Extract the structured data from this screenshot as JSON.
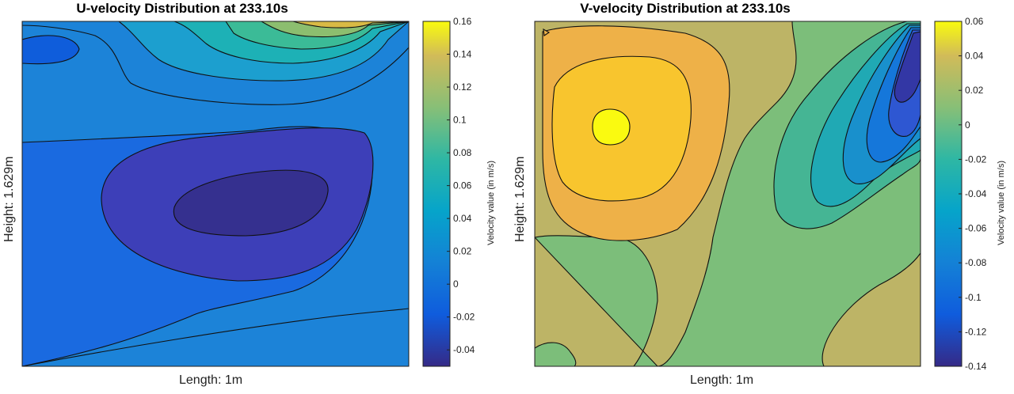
{
  "chart_data": [
    {
      "type": "heatmap",
      "title": "U-velocity Distribution at 233.10s",
      "xlabel": "Length: 1m",
      "ylabel": "Height: 1.629m",
      "colorbar_label": "Velocity value (in m/s)",
      "colorbar_ticks": [
        "0.16",
        "0.14",
        "0.12",
        "0.1",
        "0.08",
        "0.06",
        "0.04",
        "0.02",
        "0",
        "-0.02",
        "-0.04"
      ],
      "colorbar_range": [
        -0.05,
        0.16
      ],
      "colormap": "parula",
      "regions": [
        {
          "value": -0.01,
          "color": "#1A6AE0"
        },
        {
          "value": -0.025,
          "color": "#0F5DDB"
        },
        {
          "value": -0.04,
          "color": "#3D3FB8"
        },
        {
          "value": -0.05,
          "color": "#35308F"
        },
        {
          "value": 0.01,
          "color": "#1C83D8"
        },
        {
          "value": 0.03,
          "color": "#1C9FCF"
        },
        {
          "value": 0.05,
          "color": "#1DB1B6"
        },
        {
          "value": 0.07,
          "color": "#3BBB97"
        },
        {
          "value": 0.09,
          "color": "#8CBE6F"
        },
        {
          "value": 0.12,
          "color": "#D9BA45"
        },
        {
          "value": 0.15,
          "color": "#FDE724"
        }
      ]
    },
    {
      "type": "heatmap",
      "title": "V-velocity Distribution at 233.10s",
      "xlabel": "Length: 1m",
      "ylabel": "Height: 1.629m",
      "colorbar_label": "Velocity value (in m/s)",
      "colorbar_ticks": [
        "0.06",
        "0.04",
        "0.02",
        "0",
        "-0.02",
        "-0.04",
        "-0.06",
        "-0.08",
        "-0.1",
        "-0.12",
        "-0.14"
      ],
      "colorbar_range": [
        -0.14,
        0.06
      ],
      "colormap": "parula",
      "regions": [
        {
          "value": 0.005,
          "color": "#BDB466"
        },
        {
          "value": -0.005,
          "color": "#7CBE7A"
        },
        {
          "value": 0.025,
          "color": "#EEB148"
        },
        {
          "value": 0.04,
          "color": "#F8C52E"
        },
        {
          "value": 0.055,
          "color": "#FAFA10"
        },
        {
          "value": -0.025,
          "color": "#45B594"
        },
        {
          "value": -0.045,
          "color": "#20A9B4"
        },
        {
          "value": -0.065,
          "color": "#1990CC"
        },
        {
          "value": -0.085,
          "color": "#1577DA"
        },
        {
          "value": -0.105,
          "color": "#2E57D2"
        },
        {
          "value": -0.125,
          "color": "#3337A5"
        }
      ]
    }
  ]
}
